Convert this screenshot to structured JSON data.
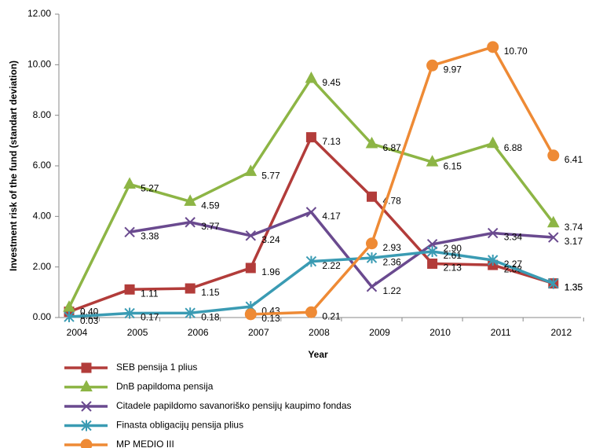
{
  "chart_data": {
    "type": "line",
    "y_label": "Investment risk of the fund (standart deviation)",
    "x_label": "Year",
    "categories": [
      "2004",
      "2005",
      "2006",
      "2007",
      "2008",
      "2009",
      "2010",
      "2011",
      "2012"
    ],
    "ylim": [
      0,
      12
    ],
    "yticks": [
      {
        "value": 0,
        "label": "0.00"
      },
      {
        "value": 2,
        "label": "2.00"
      },
      {
        "value": 4,
        "label": "4.00"
      },
      {
        "value": 6,
        "label": "6.00"
      },
      {
        "value": 8,
        "label": "8.00"
      },
      {
        "value": 10,
        "label": "10.00"
      },
      {
        "value": 12,
        "label": "12.00"
      }
    ],
    "series": [
      {
        "name": "SEB pensija 1 plius",
        "color": "#b23c3a",
        "marker": "square",
        "values": [
          0.23,
          1.11,
          1.15,
          1.96,
          7.13,
          4.78,
          2.13,
          2.08,
          1.35
        ],
        "value_labels": [
          "0.23",
          "1.11",
          "1.15",
          "1.96",
          "7.13",
          "4.78",
          "2.13",
          "2.08",
          "1.35"
        ]
      },
      {
        "name": "DnB papildoma pensija",
        "color": "#8db545",
        "marker": "triangle",
        "values": [
          0.4,
          5.27,
          4.59,
          5.77,
          9.45,
          6.87,
          6.15,
          6.88,
          3.74
        ],
        "value_labels": [
          "0.40",
          "5.27",
          "4.59",
          "5.77",
          "9.45",
          "6.87",
          "6.15",
          "6.88",
          "3.74"
        ]
      },
      {
        "name": "Citadele papildomo savanoriško pensijų kaupimo fondas",
        "color": "#6a4a8f",
        "marker": "cross",
        "values": [
          null,
          3.38,
          3.77,
          3.24,
          4.17,
          1.22,
          2.9,
          3.34,
          3.17
        ],
        "value_labels": [
          null,
          "3.38",
          "3.77",
          "3.24",
          "4.17",
          "1.22",
          "2.90",
          "3.34",
          "3.17"
        ]
      },
      {
        "name": "Finasta obligacijų pensija plius",
        "color": "#3a9bb3",
        "marker": "star",
        "values": [
          0.03,
          0.17,
          0.18,
          0.43,
          2.22,
          2.36,
          2.61,
          2.27,
          1.35
        ],
        "value_labels": [
          "0.03",
          "0.17",
          "0.18",
          "0.43",
          "2.22",
          "2.36",
          "2.61",
          "2.27",
          "1.35"
        ]
      },
      {
        "name": "MP MEDIO III",
        "color": "#ee8a35",
        "marker": "circle",
        "values": [
          null,
          null,
          null,
          0.13,
          0.21,
          2.93,
          9.97,
          10.7,
          6.41
        ],
        "value_labels": [
          null,
          null,
          null,
          "0.13",
          "0.21",
          "2.93",
          "9.97",
          "10.70",
          "6.41"
        ]
      }
    ]
  }
}
